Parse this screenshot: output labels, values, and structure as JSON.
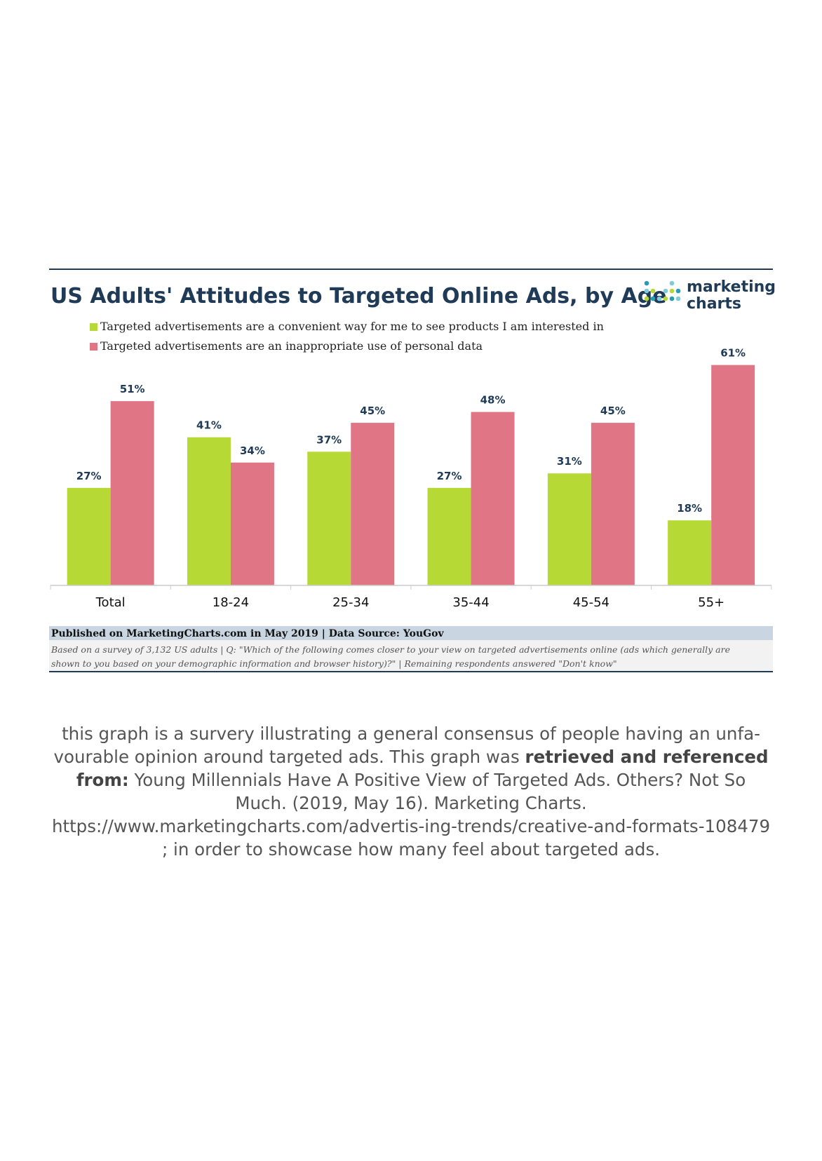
{
  "chart_data": {
    "type": "bar",
    "title": "US Adults' Attitudes to Targeted Online Ads, by Age",
    "categories": [
      "Total",
      "18-24",
      "25-34",
      "35-44",
      "45-54",
      "55+"
    ],
    "series": [
      {
        "name": "Targeted advertisements are a convenient way for me to see products I am interested in",
        "values": [
          27,
          41,
          37,
          27,
          31,
          18
        ],
        "labels": [
          "27%",
          "41%",
          "37%",
          "27%",
          "31%",
          "18%"
        ],
        "color": "#b6d935"
      },
      {
        "name": "Targeted advertisements are an inappropriate use of personal data",
        "values": [
          51,
          34,
          45,
          48,
          45,
          61
        ],
        "labels": [
          "51%",
          "34%",
          "45%",
          "48%",
          "45%",
          "61%"
        ],
        "color": "#e07586"
      }
    ],
    "ylim": [
      0,
      65
    ],
    "legend_position": "top-left",
    "grid": false
  },
  "brand": {
    "line1": "marketing",
    "line2": "charts",
    "dot_colors": [
      "#2a9bb5",
      "#7fcbd8",
      "#b6d935"
    ]
  },
  "footer": {
    "published": "Published on MarketingCharts.com in May 2019 | Data Source: YouGov",
    "note_line1": "Based on a survey of 3,132 US adults | Q: \"Which of the following comes closer to your view on targeted advertisements online (ads which generally are",
    "note_line2": "shown to you based on your demographic information and browser history)?\" | Remaining respondents answered \"Don't know\""
  },
  "caption": {
    "part1": "this graph is a survery illustrating a general consensus of people having an unfa-vourable opinion around targeted ads. This graph was ",
    "bold": "retrieved and referenced from:",
    "part2": " Young Millennials Have A Positive View of Targeted Ads. Others? Not So Much. (2019, May 16). Marketing Charts. https://www.marketingcharts.com/advertis-ing-trends/creative-and-formats-108479 ; in order to showcase how many feel about targeted ads."
  }
}
